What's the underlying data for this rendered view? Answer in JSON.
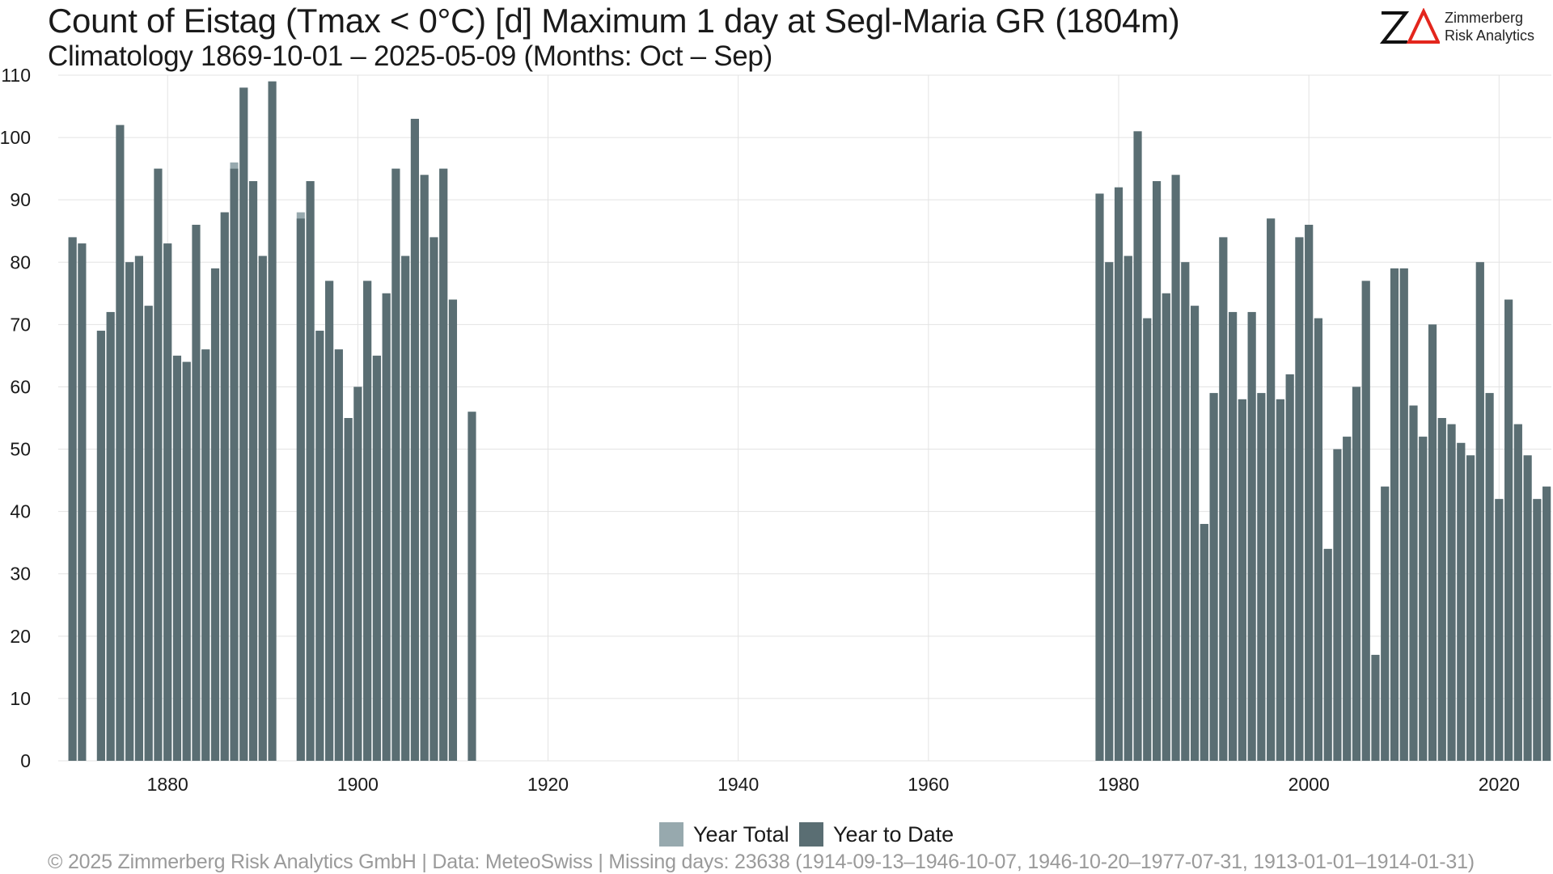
{
  "header": {
    "title": "Count of Eistag (Tmax < 0°C) [d] Maximum 1 day at Segl-Maria  GR (1804m)",
    "subtitle": "Climatology 1869-10-01 – 2025-05-09 (Months: Oct – Sep)"
  },
  "logo": {
    "mark": "ZΔ",
    "line1": "Zimmerberg",
    "line2": "Risk Analytics"
  },
  "footer": {
    "text": "©  2025 Zimmerberg Risk Analytics GmbH | Data: MeteoSwiss | Missing days: 23638 (1914-09-13–1946-10-07, 1946-10-20–1977-07-31, 1913-01-01–1914-01-31)"
  },
  "colors": {
    "year_total": "#97a9ae",
    "year_to_date": "#5a6e73",
    "grid": "#e3e3e3",
    "logo_accent": "#e3261d"
  },
  "chart_data": {
    "type": "bar",
    "title": "",
    "xlabel": "",
    "ylabel": "",
    "ylim": [
      0,
      110
    ],
    "xlim": [
      1868.5,
      2025.5
    ],
    "yticks": [
      0,
      10,
      20,
      30,
      40,
      50,
      60,
      70,
      80,
      90,
      100,
      110
    ],
    "xticks": [
      1880,
      1900,
      1920,
      1940,
      1960,
      1980,
      2000,
      2020
    ],
    "grid": true,
    "legend_position": "bottom",
    "x": [
      1870,
      1871,
      1873,
      1874,
      1875,
      1876,
      1877,
      1878,
      1879,
      1880,
      1881,
      1882,
      1883,
      1884,
      1885,
      1886,
      1887,
      1888,
      1889,
      1890,
      1891,
      1894,
      1895,
      1896,
      1897,
      1898,
      1899,
      1900,
      1901,
      1902,
      1903,
      1904,
      1905,
      1906,
      1907,
      1908,
      1909,
      1910,
      1912,
      1978,
      1979,
      1980,
      1981,
      1982,
      1983,
      1984,
      1985,
      1986,
      1987,
      1988,
      1989,
      1990,
      1991,
      1992,
      1993,
      1994,
      1995,
      1996,
      1997,
      1998,
      1999,
      2000,
      2001,
      2002,
      2003,
      2004,
      2005,
      2006,
      2007,
      2008,
      2009,
      2010,
      2011,
      2012,
      2013,
      2014,
      2015,
      2016,
      2017,
      2018,
      2019,
      2020,
      2021,
      2022,
      2023,
      2024,
      2025
    ],
    "series": [
      {
        "name": "Year Total",
        "values": [
          84,
          83,
          69,
          72,
          102,
          80,
          81,
          73,
          95,
          83,
          65,
          64,
          86,
          66,
          79,
          88,
          96,
          108,
          93,
          81,
          109,
          88,
          93,
          69,
          77,
          66,
          55,
          60,
          77,
          65,
          75,
          95,
          81,
          103,
          94,
          84,
          95,
          74,
          56,
          91,
          80,
          92,
          81,
          101,
          71,
          93,
          75,
          94,
          80,
          73,
          38,
          59,
          84,
          72,
          58,
          72,
          59,
          87,
          58,
          62,
          84,
          86,
          71,
          34,
          50,
          52,
          60,
          77,
          17,
          44,
          79,
          79,
          57,
          52,
          70,
          55,
          54,
          51,
          49,
          80,
          59,
          42,
          74,
          54,
          49,
          42,
          44
        ]
      },
      {
        "name": "Year to Date",
        "values": [
          84,
          83,
          69,
          72,
          102,
          80,
          81,
          73,
          95,
          83,
          65,
          64,
          86,
          66,
          79,
          88,
          95,
          108,
          93,
          81,
          109,
          87,
          93,
          69,
          77,
          66,
          55,
          60,
          77,
          65,
          75,
          95,
          81,
          103,
          94,
          84,
          95,
          74,
          56,
          91,
          80,
          92,
          81,
          101,
          71,
          93,
          75,
          94,
          80,
          73,
          38,
          59,
          84,
          72,
          58,
          72,
          59,
          87,
          58,
          62,
          84,
          86,
          71,
          34,
          50,
          52,
          60,
          77,
          17,
          44,
          79,
          79,
          57,
          52,
          70,
          55,
          54,
          51,
          49,
          80,
          59,
          42,
          74,
          54,
          49,
          42,
          44
        ]
      }
    ]
  }
}
